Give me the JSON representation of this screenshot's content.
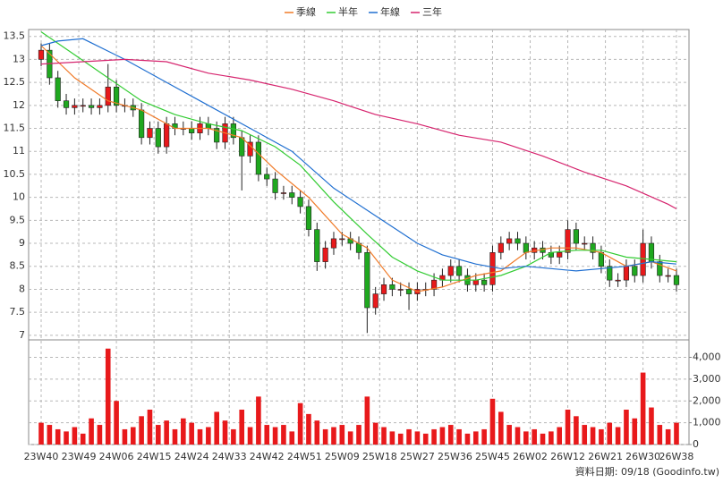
{
  "chart_data": {
    "type": "candlestick",
    "x": [
      0,
      2,
      4,
      6,
      8,
      10,
      12,
      14,
      16,
      18,
      20,
      22,
      24,
      26,
      28,
      30,
      32,
      34,
      36,
      38,
      40,
      42,
      44,
      46,
      48,
      50,
      52,
      54,
      56,
      58,
      60,
      62,
      64,
      66,
      68,
      70,
      72,
      74,
      76,
      78,
      80,
      82,
      84,
      86,
      88,
      90,
      92,
      94,
      96,
      98,
      100,
      102,
      104,
      106,
      108,
      110,
      112,
      114,
      116,
      118,
      120,
      122,
      124,
      126,
      128,
      130,
      132,
      134,
      136,
      138,
      140,
      142,
      144,
      146,
      148,
      150,
      152
    ],
    "open": [
      13.0,
      13.2,
      12.6,
      12.1,
      11.95,
      12.0,
      12.0,
      11.95,
      12.0,
      12.4,
      12.0,
      12.0,
      11.9,
      11.3,
      11.5,
      11.1,
      11.6,
      11.5,
      11.5,
      11.4,
      11.6,
      11.5,
      11.2,
      11.6,
      11.3,
      10.9,
      11.2,
      10.5,
      10.4,
      10.1,
      10.1,
      10.0,
      9.8,
      9.3,
      8.6,
      8.9,
      9.1,
      9.1,
      9.0,
      8.8,
      7.6,
      7.9,
      8.1,
      8.0,
      8.0,
      7.9,
      8.0,
      8.0,
      8.2,
      8.3,
      8.5,
      8.3,
      8.1,
      8.2,
      8.1,
      8.8,
      9.0,
      9.1,
      9.0,
      8.8,
      8.9,
      8.8,
      8.7,
      8.8,
      9.3,
      9.0,
      9.0,
      8.8,
      8.5,
      8.2,
      8.2,
      8.5,
      8.3,
      9.0,
      8.6,
      8.3,
      8.3
    ],
    "high": [
      13.35,
      13.35,
      12.75,
      12.25,
      12.15,
      12.15,
      12.15,
      12.15,
      12.9,
      12.55,
      12.15,
      12.15,
      12.05,
      11.65,
      11.65,
      11.75,
      11.75,
      11.65,
      11.65,
      11.75,
      11.75,
      11.65,
      11.75,
      11.75,
      11.45,
      11.35,
      11.35,
      10.65,
      10.55,
      10.25,
      10.25,
      10.15,
      9.95,
      9.45,
      9.05,
      9.25,
      9.25,
      9.25,
      9.15,
      8.95,
      8.05,
      8.25,
      8.25,
      8.15,
      8.15,
      8.15,
      8.15,
      8.35,
      8.45,
      8.65,
      8.65,
      8.45,
      8.35,
      8.35,
      8.95,
      9.15,
      9.25,
      9.25,
      9.15,
      9.05,
      9.05,
      8.95,
      8.95,
      9.5,
      9.45,
      9.15,
      9.15,
      8.95,
      8.65,
      8.35,
      8.65,
      8.65,
      9.3,
      9.15,
      8.75,
      8.45,
      8.45
    ],
    "low": [
      12.85,
      12.45,
      11.95,
      11.8,
      11.8,
      11.85,
      11.8,
      11.8,
      11.85,
      11.85,
      11.85,
      11.75,
      11.15,
      11.15,
      10.95,
      10.95,
      11.35,
      11.35,
      11.25,
      11.25,
      11.35,
      11.05,
      11.05,
      11.15,
      10.15,
      10.75,
      10.35,
      10.25,
      9.95,
      9.95,
      9.85,
      9.65,
      9.15,
      8.4,
      8.45,
      8.75,
      8.95,
      8.85,
      8.65,
      7.05,
      7.45,
      7.75,
      7.85,
      7.85,
      7.55,
      7.75,
      7.85,
      7.85,
      8.05,
      8.15,
      8.15,
      7.95,
      7.95,
      7.95,
      7.95,
      8.65,
      8.85,
      8.85,
      8.65,
      8.65,
      8.65,
      8.55,
      8.55,
      8.65,
      8.85,
      8.85,
      8.65,
      8.35,
      8.05,
      8.05,
      8.05,
      8.15,
      8.15,
      8.45,
      8.15,
      8.15,
      7.95
    ],
    "close": [
      13.2,
      12.6,
      12.1,
      11.95,
      12.0,
      12.0,
      11.95,
      12.0,
      12.4,
      12.0,
      12.0,
      11.9,
      11.3,
      11.5,
      11.1,
      11.6,
      11.5,
      11.5,
      11.4,
      11.6,
      11.5,
      11.2,
      11.6,
      11.3,
      10.9,
      11.2,
      10.5,
      10.4,
      10.1,
      10.1,
      10.0,
      9.8,
      9.3,
      8.6,
      8.9,
      9.1,
      9.1,
      9.0,
      8.8,
      7.6,
      7.9,
      8.1,
      8.0,
      8.0,
      7.9,
      8.0,
      8.0,
      8.2,
      8.3,
      8.5,
      8.3,
      8.1,
      8.2,
      8.1,
      8.8,
      9.0,
      9.1,
      9.0,
      8.8,
      8.9,
      8.8,
      8.7,
      8.8,
      9.3,
      9.0,
      9.0,
      8.8,
      8.5,
      8.2,
      8.2,
      8.5,
      8.3,
      9.0,
      8.6,
      8.3,
      8.3,
      8.1
    ],
    "volume": [
      1000,
      900,
      700,
      600,
      800,
      500,
      1200,
      900,
      4400,
      2000,
      700,
      800,
      1300,
      1600,
      900,
      1100,
      700,
      1200,
      1000,
      700,
      800,
      1500,
      1100,
      700,
      1600,
      800,
      2200,
      900,
      800,
      900,
      600,
      1900,
      1400,
      1100,
      700,
      800,
      900,
      600,
      900,
      2200,
      1000,
      800,
      600,
      500,
      700,
      600,
      500,
      700,
      800,
      900,
      700,
      500,
      600,
      700,
      2100,
      1500,
      900,
      800,
      600,
      700,
      500,
      600,
      800,
      1600,
      1300,
      900,
      800,
      700,
      1000,
      800,
      1600,
      1200,
      3300,
      1700,
      900,
      700,
      1000
    ],
    "up_color": "#e8191b",
    "down_color": "#1fa81f",
    "volume_color": "#e8191b",
    "lines": [
      {
        "name": "季線",
        "color": "#f07a28",
        "x": [
          0,
          8,
          16,
          24,
          32,
          40,
          48,
          56,
          64,
          72,
          78,
          84,
          90,
          96,
          104,
          110,
          116,
          122,
          128,
          134,
          140,
          146,
          152
        ],
        "values": [
          13.3,
          12.6,
          12.1,
          11.9,
          11.5,
          11.5,
          11.3,
          10.6,
          10.0,
          9.2,
          8.9,
          8.2,
          7.95,
          8.05,
          8.3,
          8.4,
          8.8,
          8.9,
          8.9,
          8.8,
          8.5,
          8.6,
          8.4
        ]
      },
      {
        "name": "半年",
        "color": "#33cc33",
        "x": [
          0,
          8,
          16,
          24,
          32,
          40,
          48,
          56,
          62,
          70,
          78,
          84,
          90,
          96,
          104,
          110,
          116,
          122,
          128,
          134,
          140,
          146,
          152
        ],
        "values": [
          13.6,
          13.1,
          12.6,
          12.1,
          11.8,
          11.6,
          11.45,
          11.1,
          10.7,
          9.9,
          9.2,
          8.7,
          8.4,
          8.2,
          8.2,
          8.3,
          8.5,
          8.8,
          8.85,
          8.85,
          8.7,
          8.65,
          8.6
        ]
      },
      {
        "name": "年線",
        "color": "#1f6fd1",
        "x": [
          0,
          4,
          10,
          20,
          30,
          40,
          50,
          60,
          70,
          80,
          90,
          96,
          104,
          110,
          116,
          122,
          128,
          134,
          140,
          146,
          152
        ],
        "values": [
          13.3,
          13.4,
          13.45,
          13.0,
          12.5,
          12.0,
          11.5,
          11.0,
          10.2,
          9.6,
          9.0,
          8.75,
          8.55,
          8.45,
          8.5,
          8.45,
          8.4,
          8.45,
          8.5,
          8.6,
          8.55
        ]
      },
      {
        "name": "三年",
        "color": "#d6246e",
        "x": [
          0,
          10,
          20,
          30,
          40,
          50,
          60,
          70,
          80,
          90,
          100,
          110,
          120,
          130,
          140,
          150,
          152
        ],
        "values": [
          12.9,
          12.95,
          13.0,
          12.95,
          12.7,
          12.55,
          12.35,
          12.1,
          11.8,
          11.6,
          11.35,
          11.2,
          10.9,
          10.55,
          10.25,
          9.85,
          9.75
        ]
      }
    ],
    "xlim": [
      -3,
      155
    ],
    "xticks": [
      {
        "value": 0,
        "label": "23W40"
      },
      {
        "value": 9,
        "label": "23W49"
      },
      {
        "value": 18,
        "label": "24W06"
      },
      {
        "value": 27,
        "label": "24W15"
      },
      {
        "value": 36,
        "label": "24W24"
      },
      {
        "value": 45,
        "label": "24W33"
      },
      {
        "value": 54,
        "label": "24W42"
      },
      {
        "value": 63,
        "label": "24W51"
      },
      {
        "value": 72,
        "label": "25W09"
      },
      {
        "value": 81,
        "label": "25W18"
      },
      {
        "value": 90,
        "label": "25W27"
      },
      {
        "value": 99,
        "label": "25W36"
      },
      {
        "value": 108,
        "label": "25W45"
      },
      {
        "value": 117,
        "label": "26W02"
      },
      {
        "value": 126,
        "label": "26W12"
      },
      {
        "value": 135,
        "label": "26W21"
      },
      {
        "value": 144,
        "label": "26W30"
      },
      {
        "value": 152,
        "label": "26W38"
      }
    ],
    "ylim": [
      6.9,
      13.65
    ],
    "yticks": [
      7,
      7.5,
      8,
      8.5,
      9,
      9.5,
      10,
      10.5,
      11,
      11.5,
      12,
      12.5,
      13,
      13.5
    ],
    "y2lim": [
      0,
      4800
    ],
    "y2ticks": [
      0,
      {
        "value": 1000,
        "label": "1,000"
      },
      {
        "value": 2000,
        "label": "2,000"
      },
      {
        "value": 3000,
        "label": "3,000"
      },
      {
        "value": 4000,
        "label": "4,000"
      }
    ],
    "grid": true,
    "footer": "資料日期: 09/18  (Goodinfo.tw)"
  }
}
